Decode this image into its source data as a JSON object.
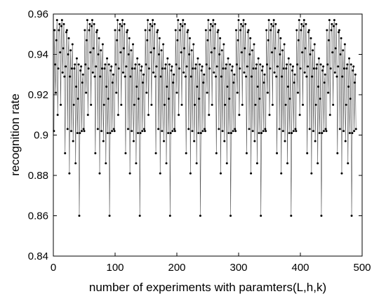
{
  "chart_data": {
    "type": "line",
    "title": "",
    "xlabel": "number of experiments with paramters(L,h,k)",
    "ylabel": "recognition rate",
    "xlim": [
      0,
      500
    ],
    "ylim": [
      0.84,
      0.96
    ],
    "xticks": [
      0,
      100,
      200,
      300,
      400,
      500
    ],
    "yticks": [
      0.84,
      0.86,
      0.88,
      0.9,
      0.92,
      0.94,
      0.96
    ],
    "ytick_labels": [
      "0.84",
      "0.86",
      "0.88",
      "0.9",
      "0.92",
      "0.94",
      "0.96"
    ],
    "grid": false,
    "legend": "none",
    "marker": "dot",
    "line_color": "#555555",
    "marker_color": "#000000",
    "n_points": 490,
    "cycle_length": 49,
    "cycles": 10,
    "cycle_pattern": [
      0.902,
      0.952,
      0.935,
      0.921,
      0.947,
      0.957,
      0.91,
      0.933,
      0.952,
      0.955,
      0.941,
      0.915,
      0.954,
      0.957,
      0.931,
      0.943,
      0.955,
      0.929,
      0.891,
      0.934,
      0.951,
      0.952,
      0.903,
      0.94,
      0.948,
      0.881,
      0.929,
      0.942,
      0.902,
      0.933,
      0.945,
      0.897,
      0.915,
      0.933,
      0.935,
      0.886,
      0.924,
      0.938,
      0.901,
      0.918,
      0.935,
      0.86,
      0.901,
      0.932,
      0.934,
      0.902,
      0.926,
      0.93,
      0.903
    ]
  }
}
